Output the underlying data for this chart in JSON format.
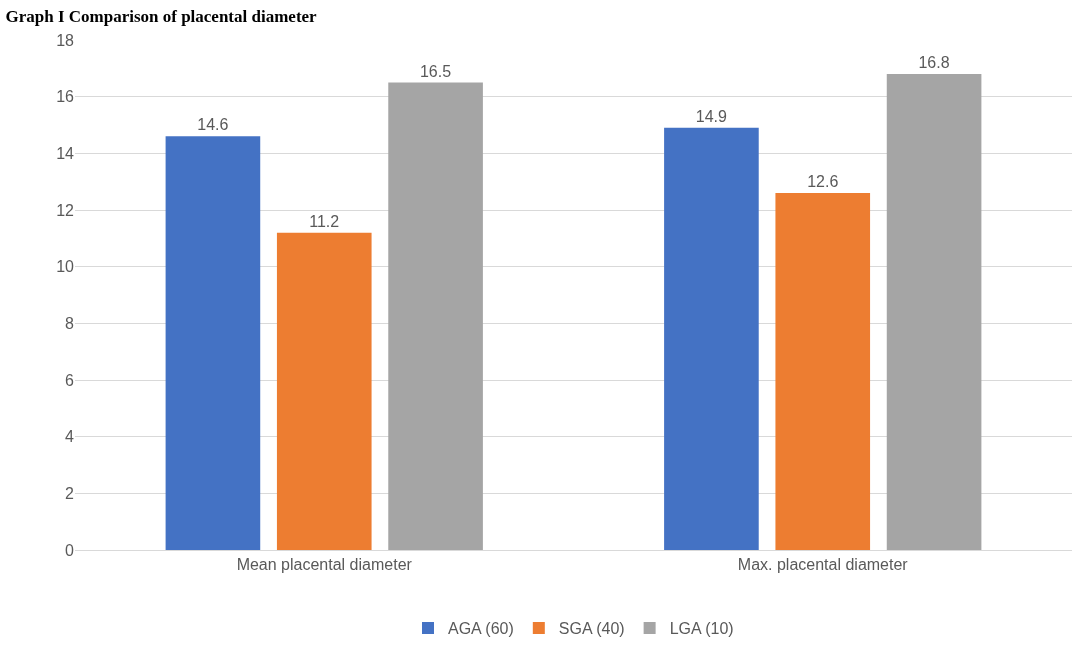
{
  "chart_data": {
    "type": "bar",
    "title": "Graph I Comparison of placental diameter",
    "categories": [
      "Mean placental diameter",
      "Max. placental diameter"
    ],
    "series": [
      {
        "name": "AGA (60)",
        "color": "#4472c4",
        "values": [
          14.6,
          14.9
        ]
      },
      {
        "name": "SGA (40)",
        "color": "#ed7d31",
        "values": [
          11.2,
          12.6
        ]
      },
      {
        "name": "LGA (10)",
        "color": "#a5a5a5",
        "values": [
          16.5,
          16.8
        ]
      }
    ],
    "ylim": [
      0,
      18
    ],
    "yticks": [
      0,
      2,
      4,
      6,
      8,
      10,
      12,
      14,
      16,
      18
    ],
    "grid": "y",
    "legend": "bottom",
    "data_labels": true
  }
}
